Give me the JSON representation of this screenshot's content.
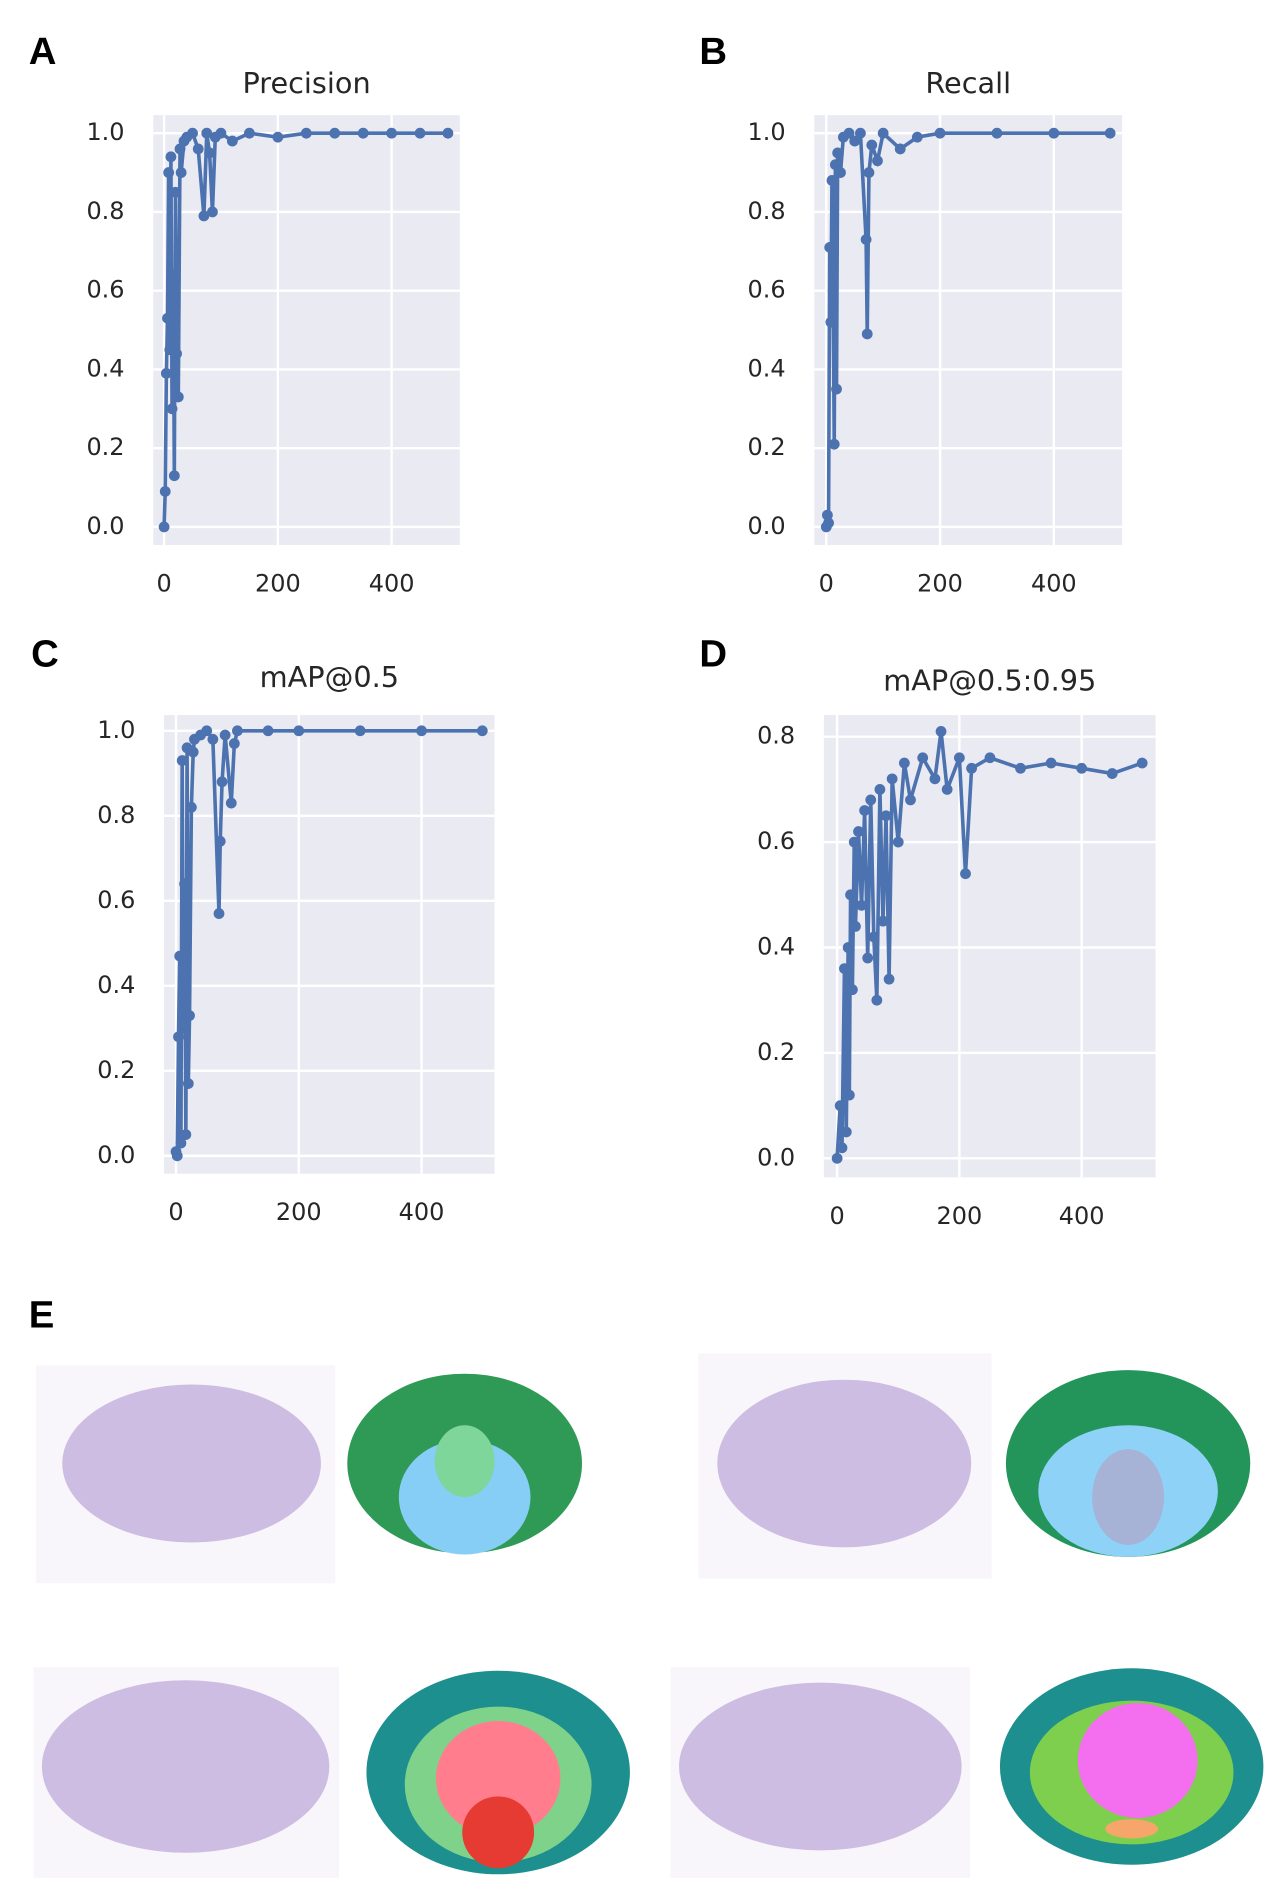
{
  "chart_data": [
    {
      "panel_label": "A",
      "type": "line",
      "title": "Precision",
      "color": "#4c72b0",
      "grid": true,
      "x": [
        0,
        2,
        4,
        6,
        8,
        10,
        12,
        14,
        16,
        18,
        20,
        22,
        25,
        28,
        30,
        35,
        40,
        50,
        60,
        70,
        75,
        80,
        85,
        90,
        100,
        120,
        150,
        200,
        250,
        300,
        350,
        400,
        450,
        499
      ],
      "values": [
        0,
        0.09,
        0.39,
        0.53,
        0.9,
        0.45,
        0.94,
        0.3,
        0.64,
        0.13,
        0.85,
        0.44,
        0.33,
        0.96,
        0.9,
        0.98,
        0.99,
        1.0,
        0.96,
        0.79,
        1.0,
        0.95,
        0.8,
        0.99,
        1.0,
        0.98,
        1.0,
        0.99,
        1.0,
        1.0,
        1.0,
        1.0,
        1.0,
        1.0
      ],
      "xlim": [
        -19,
        520
      ],
      "ylim": [
        -0.046,
        1.046
      ],
      "xticks": [
        0,
        200,
        400
      ],
      "yticks": [
        {
          "value": 0,
          "label": "0.0"
        },
        0.2,
        0.4,
        0.6,
        0.8,
        {
          "value": 1,
          "label": "1.0"
        }
      ]
    },
    {
      "panel_label": "B",
      "type": "line",
      "title": "Recall",
      "color": "#4c72b0",
      "grid": true,
      "x": [
        0,
        2,
        4,
        6,
        8,
        10,
        12,
        14,
        16,
        18,
        20,
        25,
        30,
        40,
        50,
        60,
        70,
        72,
        75,
        80,
        90,
        100,
        130,
        160,
        200,
        300,
        400,
        499
      ],
      "values": [
        0,
        0.03,
        0.01,
        0.71,
        0.52,
        0.88,
        0.6,
        0.21,
        0.92,
        0.35,
        0.95,
        0.9,
        0.99,
        1.0,
        0.98,
        1.0,
        0.73,
        0.49,
        0.9,
        0.97,
        0.93,
        1.0,
        0.96,
        0.99,
        1.0,
        1.0,
        1.0,
        1.0
      ],
      "xlim": [
        -21,
        520
      ],
      "ylim": [
        -0.046,
        1.046
      ],
      "xticks": [
        0,
        200,
        400
      ],
      "yticks": [
        {
          "value": 0,
          "label": "0.0"
        },
        0.2,
        0.4,
        0.6,
        0.8,
        {
          "value": 1,
          "label": "1.0"
        }
      ]
    },
    {
      "panel_label": "C",
      "type": "line",
      "title": "mAP@0.5",
      "color": "#4c72b0",
      "grid": true,
      "x": [
        0,
        2,
        4,
        6,
        8,
        10,
        12,
        14,
        16,
        18,
        20,
        22,
        25,
        28,
        30,
        40,
        50,
        60,
        70,
        72,
        75,
        80,
        90,
        95,
        100,
        150,
        200,
        300,
        400,
        499
      ],
      "values": [
        0.01,
        0.0,
        0.28,
        0.47,
        0.03,
        0.93,
        0.3,
        0.64,
        0.05,
        0.96,
        0.17,
        0.33,
        0.82,
        0.95,
        0.98,
        0.99,
        1.0,
        0.98,
        0.57,
        0.74,
        0.88,
        0.99,
        0.83,
        0.97,
        1.0,
        1.0,
        1.0,
        1.0,
        1.0,
        1.0
      ],
      "xlim": [
        -19.5,
        519
      ],
      "ylim": [
        -0.042,
        1.037
      ],
      "xticks": [
        0,
        200,
        400
      ],
      "yticks": [
        {
          "value": 0,
          "label": "0.0"
        },
        0.2,
        0.4,
        0.6,
        0.8,
        {
          "value": 1,
          "label": "1.0"
        }
      ]
    },
    {
      "panel_label": "D",
      "type": "line",
      "title": "mAP@0.5:0.95",
      "color": "#4c72b0",
      "grid": true,
      "x": [
        0,
        5,
        8,
        12,
        15,
        18,
        20,
        22,
        25,
        28,
        30,
        35,
        40,
        45,
        50,
        55,
        60,
        65,
        70,
        75,
        80,
        85,
        90,
        100,
        110,
        120,
        140,
        160,
        170,
        180,
        200,
        210,
        220,
        250,
        300,
        350,
        400,
        450,
        499
      ],
      "values": [
        0.0,
        0.1,
        0.02,
        0.36,
        0.05,
        0.4,
        0.12,
        0.5,
        0.32,
        0.6,
        0.44,
        0.62,
        0.48,
        0.66,
        0.38,
        0.68,
        0.42,
        0.3,
        0.7,
        0.45,
        0.65,
        0.34,
        0.72,
        0.6,
        0.75,
        0.68,
        0.76,
        0.72,
        0.81,
        0.7,
        0.76,
        0.54,
        0.74,
        0.76,
        0.74,
        0.75,
        0.74,
        0.73,
        0.75
      ],
      "xlim": [
        -21.6,
        521
      ],
      "ylim": [
        -0.036,
        0.841
      ],
      "xticks": [
        0,
        200,
        400
      ],
      "yticks": [
        {
          "value": 0,
          "label": "0.0"
        },
        0.2,
        0.4,
        0.6,
        0.8
      ]
    }
  ],
  "figure_e": {
    "panel_label": "E"
  }
}
